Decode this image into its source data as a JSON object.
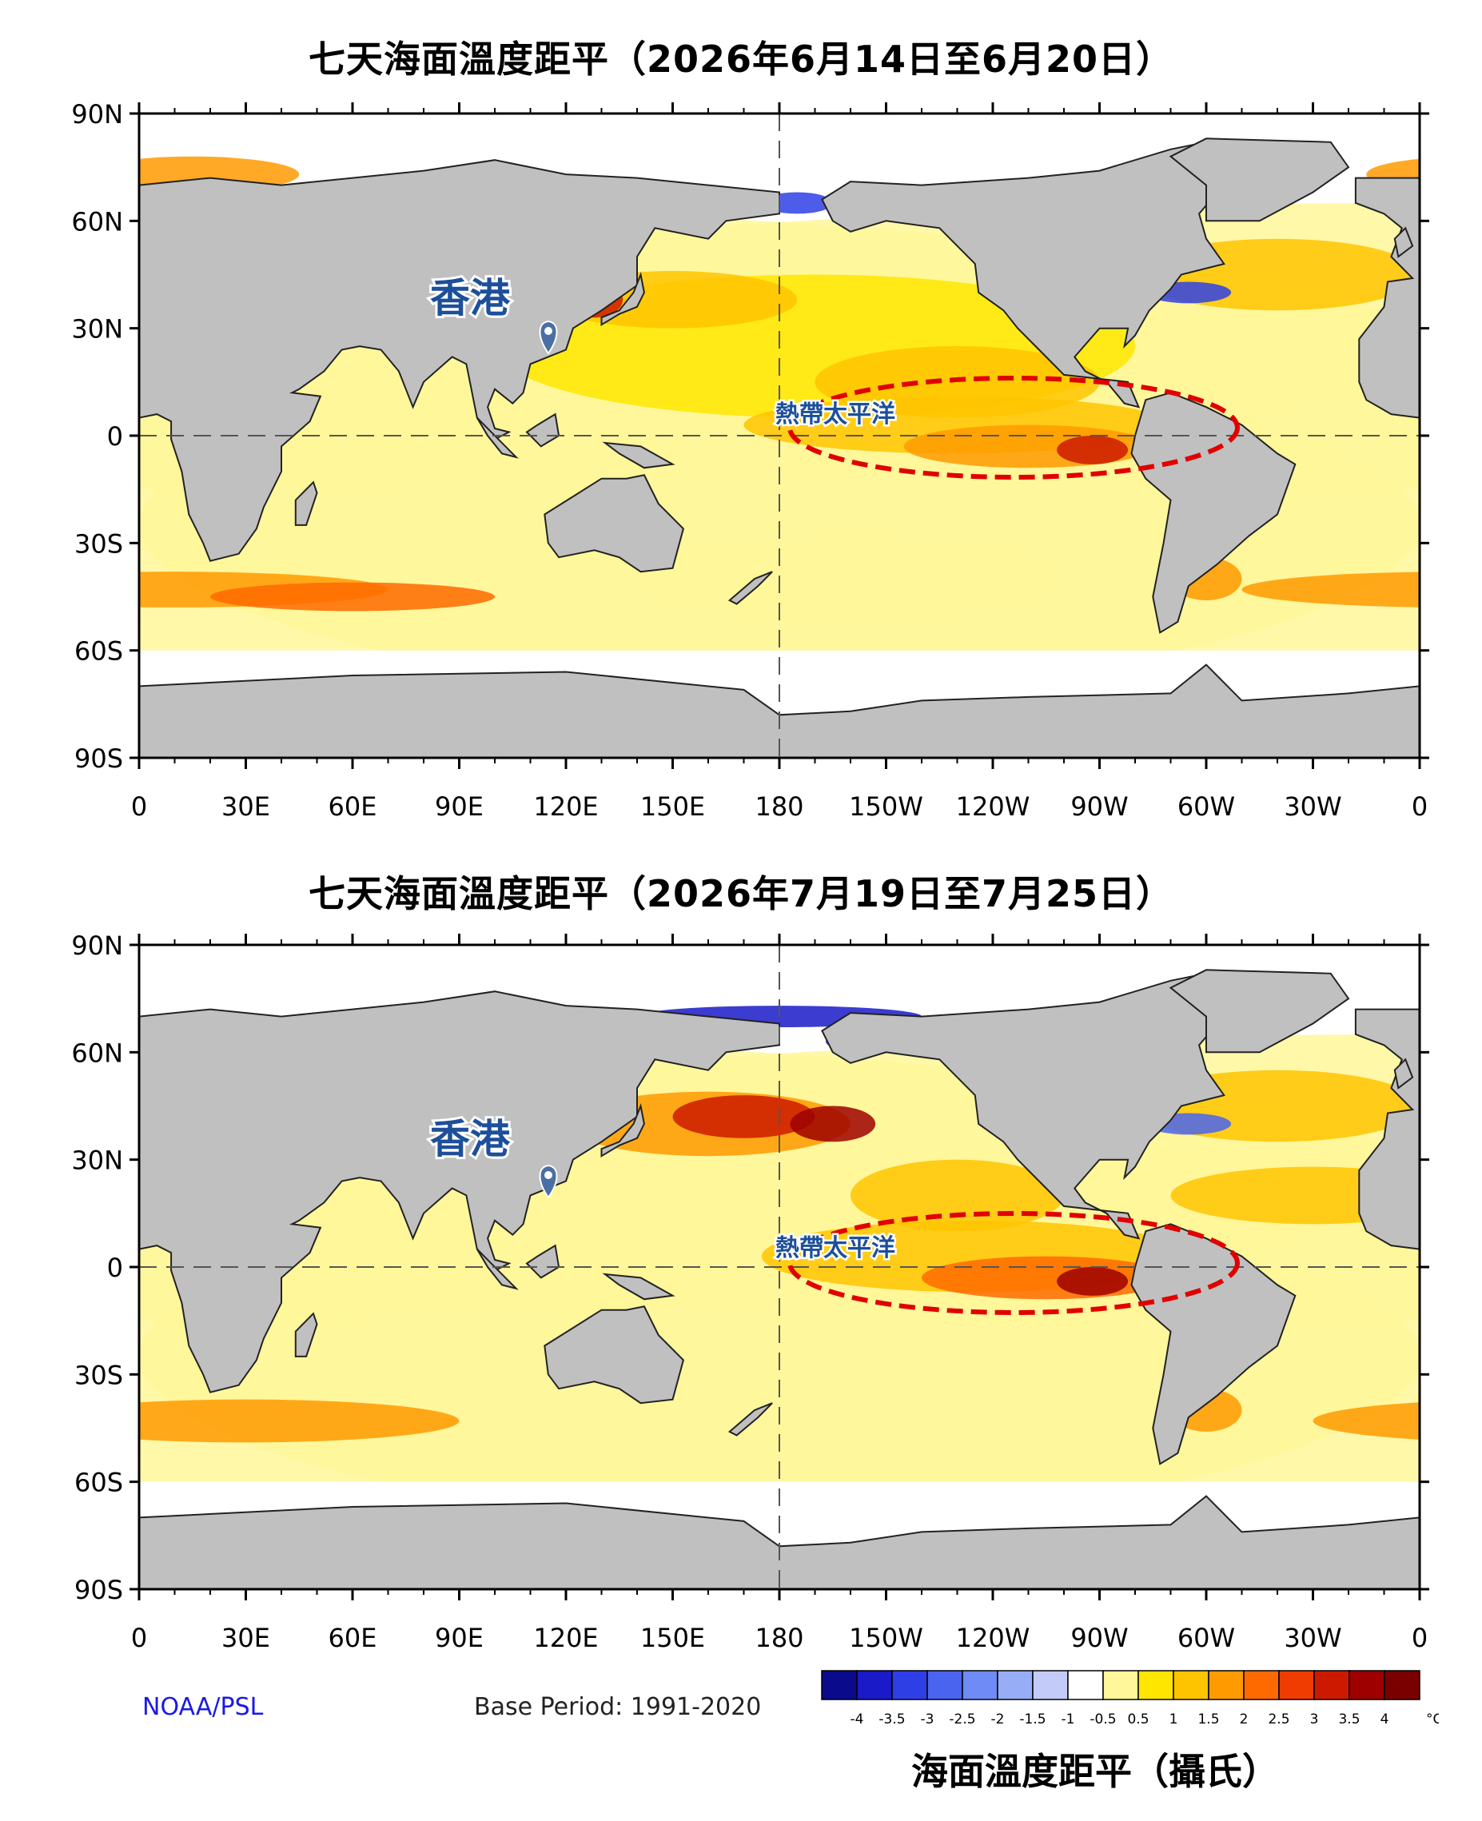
{
  "panels": [
    {
      "title": "七天海面溫度距平（2026年6月14日至6月20日）",
      "label_city": "香港",
      "label_region": "熱帶太平洋"
    },
    {
      "title": "七天海面溫度距平（2026年7月19日至7月25日）",
      "label_city": "香港",
      "label_region": "熱帶太平洋"
    }
  ],
  "lat_ticks": [
    "90N",
    "60N",
    "30N",
    "0",
    "30S",
    "60S",
    "90S"
  ],
  "lon_ticks": [
    "0",
    "30E",
    "60E",
    "90E",
    "120E",
    "150E",
    "180",
    "150W",
    "120W",
    "90W",
    "60W",
    "30W",
    "0"
  ],
  "colorbar": {
    "labels": [
      "-4",
      "-3.5",
      "-3",
      "-2.5",
      "-2",
      "-1.5",
      "-1",
      "-0.5",
      "0.5",
      "1",
      "1.5",
      "2",
      "2.5",
      "3",
      "3.5",
      "4"
    ],
    "unit": "°C",
    "colors": [
      "#0a0a8c",
      "#1a1ac8",
      "#2f3fe6",
      "#4a64f0",
      "#6f8bf5",
      "#97aef7",
      "#c3ccf9",
      "#ffffff",
      "#fff799",
      "#ffe600",
      "#ffc400",
      "#ff9a00",
      "#ff6a00",
      "#f03c00",
      "#cc1a00",
      "#9e0000",
      "#7a0000"
    ],
    "title": "海面溫度距平（攝氏）"
  },
  "footer": {
    "source": "NOAA/PSL",
    "base_period": "Base Period: 1991-2020"
  }
}
